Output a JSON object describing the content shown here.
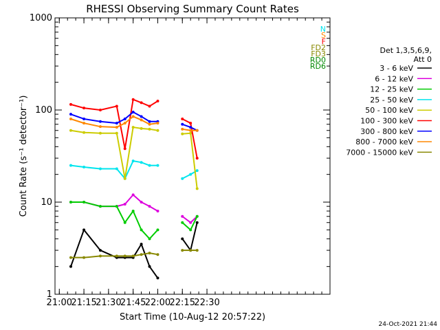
{
  "chart_data": {
    "type": "line",
    "title": "RHESSI Observing Summary Count Rates",
    "xlabel": "Start Time (10-Aug-12 20:57:22)",
    "ylabel": "Count Rate (s⁻¹ detector⁻¹)",
    "y_scale": "log",
    "ylim": [
      1,
      1000
    ],
    "xlim": [
      "20:57:22",
      "23:45:00"
    ],
    "x_tick_labels": [
      "21:00",
      "21:15",
      "21:30",
      "21:45",
      "22:00",
      "22:15",
      "22:30"
    ],
    "y_tick_labels": [
      "1",
      "10",
      "100",
      "1000"
    ],
    "legend_header": [
      "Det 1,3,5,6,9,",
      "Att 0"
    ],
    "legend_position": "right",
    "date_stamp": "24-Oct-2021 21:44",
    "data_gaps": [
      [
        "20:57",
        "21:06"
      ],
      [
        "22:02",
        "22:15"
      ],
      [
        "22:25",
        "22:33"
      ]
    ],
    "series": [
      {
        "name": "3 - 6 keV",
        "color": "#000000",
        "x": [
          "21:07",
          "21:15",
          "21:25",
          "21:35",
          "21:40",
          "21:45",
          "21:50",
          "21:55",
          "22:00",
          "22:15",
          "22:20",
          "22:24"
        ],
        "values": [
          2,
          5,
          3,
          2.5,
          2.5,
          2.5,
          3.5,
          2,
          1.5,
          4,
          3,
          6
        ]
      },
      {
        "name": "6 - 12 keV",
        "color": "#dd00dd",
        "x": [
          "21:07",
          "21:15",
          "21:25",
          "21:35",
          "21:40",
          "21:45",
          "21:50",
          "21:55",
          "22:00",
          "22:15",
          "22:20",
          "22:24"
        ],
        "values": [
          10,
          10,
          9,
          9,
          9.5,
          12,
          10,
          9,
          8,
          7,
          6,
          7
        ]
      },
      {
        "name": "12 - 25 keV",
        "color": "#00cc00",
        "x": [
          "21:07",
          "21:15",
          "21:25",
          "21:35",
          "21:40",
          "21:45",
          "21:50",
          "21:55",
          "22:00",
          "22:15",
          "22:20",
          "22:24"
        ],
        "values": [
          10,
          10,
          9,
          9,
          6,
          8,
          5,
          4,
          5,
          6,
          5,
          7
        ]
      },
      {
        "name": "25 - 50 keV",
        "color": "#00e5ee",
        "x": [
          "21:07",
          "21:15",
          "21:25",
          "21:35",
          "21:40",
          "21:45",
          "21:50",
          "21:55",
          "22:00",
          "22:15",
          "22:20",
          "22:24"
        ],
        "values": [
          25,
          24,
          23,
          23,
          18,
          28,
          27,
          25,
          25,
          18,
          20,
          22
        ]
      },
      {
        "name": "50 - 100 keV",
        "color": "#cccc00",
        "x": [
          "21:07",
          "21:15",
          "21:25",
          "21:35",
          "21:40",
          "21:45",
          "21:50",
          "21:55",
          "22:00",
          "22:15",
          "22:20",
          "22:24"
        ],
        "values": [
          60,
          57,
          56,
          56,
          18,
          65,
          63,
          62,
          60,
          55,
          56,
          14
        ]
      },
      {
        "name": "100 - 300 keV",
        "color": "#ff0000",
        "x": [
          "21:07",
          "21:15",
          "21:25",
          "21:35",
          "21:40",
          "21:45",
          "21:50",
          "21:55",
          "22:00",
          "22:15",
          "22:20",
          "22:24"
        ],
        "values": [
          115,
          105,
          100,
          110,
          38,
          130,
          120,
          110,
          125,
          80,
          72,
          30
        ]
      },
      {
        "name": "300 - 800 keV",
        "color": "#0000ff",
        "x": [
          "21:07",
          "21:15",
          "21:25",
          "21:35",
          "21:40",
          "21:45",
          "21:50",
          "21:55",
          "22:00",
          "22:15",
          "22:20",
          "22:24"
        ],
        "values": [
          90,
          80,
          75,
          72,
          80,
          95,
          85,
          75,
          75,
          70,
          65,
          60
        ]
      },
      {
        "name": "800 - 7000 keV",
        "color": "#ff8800",
        "x": [
          "21:07",
          "21:15",
          "21:25",
          "21:35",
          "21:40",
          "21:45",
          "21:50",
          "21:55",
          "22:00",
          "22:15",
          "22:20",
          "22:24"
        ],
        "values": [
          80,
          72,
          66,
          65,
          72,
          85,
          78,
          70,
          72,
          62,
          60,
          60
        ]
      },
      {
        "name": "7000 - 15000 keV",
        "color": "#888800",
        "x": [
          "21:07",
          "21:15",
          "21:25",
          "21:35",
          "21:40",
          "21:45",
          "21:50",
          "21:55",
          "22:00",
          "22:15",
          "22:20",
          "22:24"
        ],
        "values": [
          2.5,
          2.5,
          2.6,
          2.6,
          2.6,
          2.6,
          2.7,
          2.8,
          2.7,
          3,
          3,
          3
        ]
      }
    ],
    "annotations": [
      {
        "label": "N",
        "color": "#00e5ee"
      },
      {
        "label": "S",
        "color": "#ff8800"
      },
      {
        "label": "F",
        "color": "#ff0000"
      },
      {
        "label": "FD2",
        "color": "#888800"
      },
      {
        "label": "FD3",
        "color": "#888800"
      },
      {
        "label": "RD0",
        "color": "#008800"
      },
      {
        "label": "RD6",
        "color": "#008800"
      }
    ]
  }
}
